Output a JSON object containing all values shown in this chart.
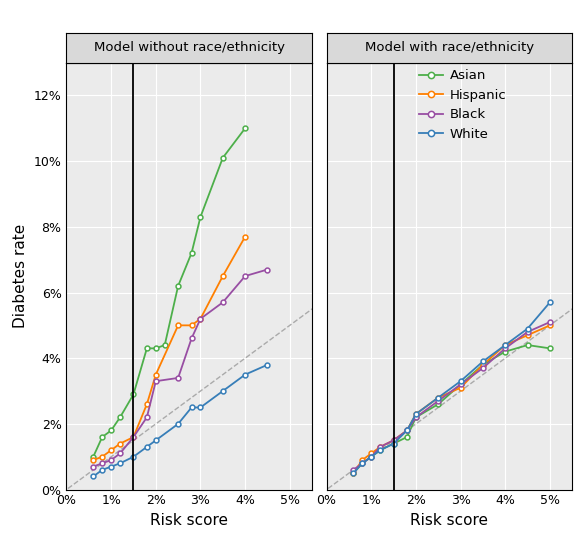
{
  "panel1_title": "Model without race/ethnicity",
  "panel2_title": "Model with race/ethnicity",
  "xlabel": "Risk score",
  "ylabel": "Diabetes rate",
  "vline_x": 0.015,
  "ylim": [
    0,
    0.13
  ],
  "xlim": [
    0,
    0.055
  ],
  "yticks": [
    0,
    0.02,
    0.04,
    0.06,
    0.08,
    0.1,
    0.12
  ],
  "xticks": [
    0,
    0.01,
    0.02,
    0.03,
    0.04,
    0.05
  ],
  "colors": {
    "Asian": "#4DAF4A",
    "Hispanic": "#FF7F00",
    "Black": "#984EA3",
    "White": "#377EB8"
  },
  "panel1": {
    "Asian": {
      "x": [
        0.006,
        0.008,
        0.01,
        0.012,
        0.015,
        0.018,
        0.02,
        0.022,
        0.025,
        0.028,
        0.03,
        0.035,
        0.04,
        0.045,
        0.05
      ],
      "y": [
        0.01,
        0.016,
        0.018,
        0.022,
        0.029,
        0.043,
        0.043,
        0.044,
        0.062,
        0.072,
        0.083,
        0.101,
        0.11,
        null,
        null
      ]
    },
    "Hispanic": {
      "x": [
        0.006,
        0.008,
        0.01,
        0.012,
        0.015,
        0.018,
        0.02,
        0.025,
        0.028,
        0.03,
        0.035,
        0.04,
        0.045,
        0.05
      ],
      "y": [
        0.009,
        0.01,
        0.012,
        0.014,
        0.016,
        0.026,
        0.035,
        0.05,
        0.05,
        0.052,
        0.065,
        0.077,
        null,
        null
      ]
    },
    "Black": {
      "x": [
        0.006,
        0.008,
        0.01,
        0.012,
        0.015,
        0.018,
        0.02,
        0.025,
        0.028,
        0.03,
        0.035,
        0.04,
        0.045,
        0.05
      ],
      "y": [
        0.007,
        0.008,
        0.009,
        0.011,
        0.016,
        0.022,
        0.033,
        0.034,
        0.046,
        0.052,
        0.057,
        0.065,
        0.067,
        null
      ]
    },
    "White": {
      "x": [
        0.006,
        0.008,
        0.01,
        0.012,
        0.015,
        0.018,
        0.02,
        0.025,
        0.028,
        0.03,
        0.035,
        0.04,
        0.045,
        0.05
      ],
      "y": [
        0.004,
        0.006,
        0.007,
        0.008,
        0.01,
        0.013,
        0.015,
        0.02,
        0.025,
        0.025,
        0.03,
        0.035,
        0.038,
        null
      ]
    }
  },
  "panel2": {
    "Asian": {
      "x": [
        0.006,
        0.008,
        0.01,
        0.012,
        0.015,
        0.018,
        0.02,
        0.025,
        0.03,
        0.035,
        0.04,
        0.045,
        0.05
      ],
      "y": [
        0.005,
        0.008,
        0.01,
        0.012,
        0.014,
        0.016,
        0.022,
        0.026,
        0.032,
        0.038,
        0.042,
        0.044,
        0.043
      ]
    },
    "Hispanic": {
      "x": [
        0.006,
        0.008,
        0.01,
        0.012,
        0.015,
        0.018,
        0.02,
        0.025,
        0.03,
        0.035,
        0.04,
        0.045,
        0.05
      ],
      "y": [
        0.005,
        0.009,
        0.011,
        0.013,
        0.015,
        0.018,
        0.023,
        0.028,
        0.031,
        0.038,
        0.044,
        0.047,
        0.05
      ]
    },
    "Black": {
      "x": [
        0.006,
        0.008,
        0.01,
        0.012,
        0.015,
        0.018,
        0.02,
        0.025,
        0.03,
        0.035,
        0.04,
        0.045,
        0.05
      ],
      "y": [
        0.006,
        0.008,
        0.01,
        0.013,
        0.015,
        0.018,
        0.022,
        0.027,
        0.032,
        0.037,
        0.043,
        0.048,
        0.051
      ]
    },
    "White": {
      "x": [
        0.006,
        0.008,
        0.01,
        0.012,
        0.015,
        0.018,
        0.02,
        0.025,
        0.03,
        0.035,
        0.04,
        0.045,
        0.05
      ],
      "y": [
        0.005,
        0.008,
        0.01,
        0.012,
        0.014,
        0.018,
        0.023,
        0.028,
        0.033,
        0.039,
        0.044,
        0.049,
        0.057
      ]
    }
  },
  "legend_order": [
    "Asian",
    "Hispanic",
    "Black",
    "White"
  ],
  "panel_bg": "#EBEBEB",
  "fig_bg": "#FFFFFF",
  "strip_bg": "#D9D9D9",
  "grid_color": "#FFFFFF"
}
